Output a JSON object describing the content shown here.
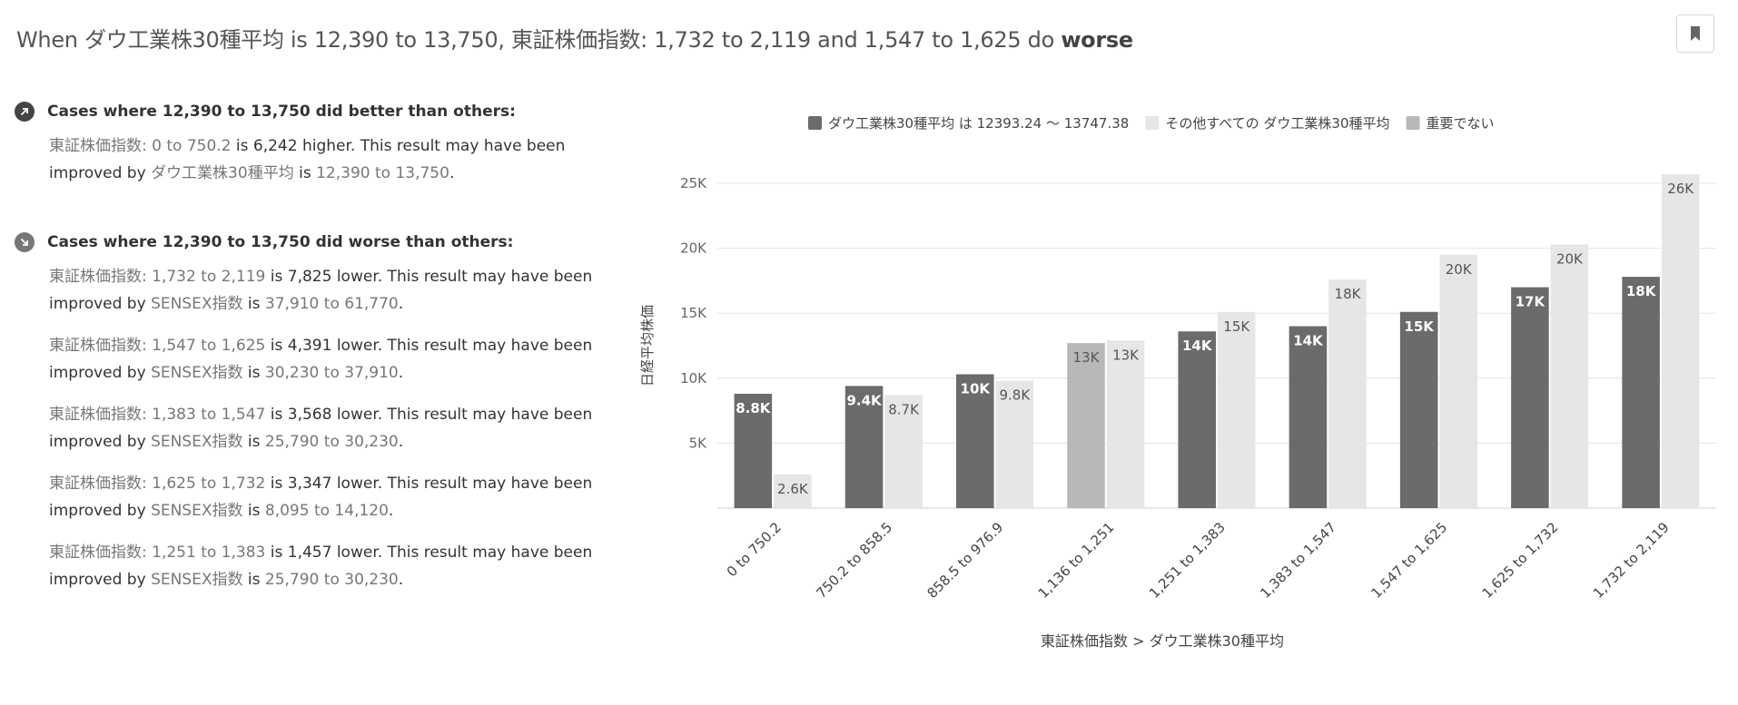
{
  "header": {
    "prefix": "When ダウ工業株30種平均 is 12,390 to 13,750, 東証株価指数: 1,732 to 2,119 and 1,547 to 1,625 do ",
    "emphasis": "worse"
  },
  "icons": {
    "bookmark": "bookmark-icon",
    "better": "arrow-up-right-icon",
    "worse": "arrow-down-right-icon"
  },
  "better": {
    "title": "Cases where 12,390 to 13,750 did better than others:",
    "items": [
      {
        "label": "東証株価指数: ",
        "range": "0 to 750.2",
        "mid": " is ",
        "amount": "6,242",
        "dir": " higher.",
        "note": " This result may have been improved by ",
        "factor": "ダウ工業株30種平均",
        "is": " is ",
        "frange": "12,390 to 13,750",
        "end": "."
      }
    ]
  },
  "worse": {
    "title": "Cases where 12,390 to 13,750 did worse than others:",
    "items": [
      {
        "label": "東証株価指数: ",
        "range": "1,732 to 2,119",
        "mid": " is ",
        "amount": "7,825",
        "dir": " lower.",
        "note": " This result may have been improved by ",
        "factor": "SENSEX指数",
        "is": " is ",
        "frange": "37,910 to 61,770",
        "end": "."
      },
      {
        "label": "東証株価指数: ",
        "range": "1,547 to 1,625",
        "mid": " is ",
        "amount": "4,391",
        "dir": " lower.",
        "note": " This result may have been improved by ",
        "factor": "SENSEX指数",
        "is": " is ",
        "frange": "30,230 to 37,910",
        "end": "."
      },
      {
        "label": "東証株価指数: ",
        "range": "1,383 to 1,547",
        "mid": " is ",
        "amount": "3,568",
        "dir": " lower.",
        "note": " This result may have been improved by ",
        "factor": "SENSEX指数",
        "is": " is ",
        "frange": "25,790 to 30,230",
        "end": "."
      },
      {
        "label": "東証株価指数: ",
        "range": "1,625 to 1,732",
        "mid": " is ",
        "amount": "3,347",
        "dir": " lower.",
        "note": " This result may have been improved by ",
        "factor": "SENSEX指数",
        "is": " is ",
        "frange": "8,095 to 14,120",
        "end": "."
      },
      {
        "label": "東証株価指数: ",
        "range": "1,251 to 1,383",
        "mid": " is ",
        "amount": "1,457",
        "dir": " lower.",
        "note": " This result may have been improved by ",
        "factor": "SENSEX指数",
        "is": " is ",
        "frange": "25,790 to 30,230",
        "end": "."
      }
    ]
  },
  "chart_data": {
    "type": "bar",
    "legend_position": "top",
    "grid": true,
    "xlabel": "東証株価指数 > ダウ工業株30種平均",
    "ylabel": "日経平均株価",
    "ylim": [
      0,
      25000
    ],
    "yticks": [
      {
        "value": 5000,
        "label": "5K"
      },
      {
        "value": 10000,
        "label": "10K"
      },
      {
        "value": 15000,
        "label": "15K"
      },
      {
        "value": 20000,
        "label": "20K"
      },
      {
        "value": 25000,
        "label": "25K"
      }
    ],
    "categories": [
      "0 to 750.2",
      "750.2 to 858.5",
      "858.5 to 976.9",
      "1,136 to 1,251",
      "1,251 to 1,383",
      "1,383 to 1,547",
      "1,547 to 1,625",
      "1,625 to 1,732",
      "1,732 to 2,119"
    ],
    "legend": [
      {
        "name": "ダウ工業株30種平均 は 12393.24 〜 13747.38",
        "color": "#6b6b6b"
      },
      {
        "name": "その他すべての ダウ工業株30種平均",
        "color": "#e6e6e6"
      },
      {
        "name": "重要でない",
        "color": "#b8b8b8"
      }
    ],
    "series": [
      {
        "name": "ダウ工業株30種平均 は 12393.24 〜 13747.38",
        "color": "#6b6b6b",
        "values": [
          8800,
          9400,
          10300,
          12700,
          13600,
          14000,
          15100,
          17000,
          17800
        ],
        "labels": [
          "8.8K",
          "9.4K",
          "10K",
          "13K",
          "14K",
          "14K",
          "15K",
          "17K",
          "18K"
        ],
        "not_significant": [
          false,
          false,
          false,
          true,
          false,
          false,
          false,
          false,
          false
        ]
      },
      {
        "name": "その他すべての ダウ工業株30種平均",
        "color": "#e6e6e6",
        "values": [
          2600,
          8700,
          9800,
          12900,
          15100,
          17600,
          19500,
          20300,
          25700
        ],
        "labels": [
          "2.6K",
          "8.7K",
          "9.8K",
          "13K",
          "15K",
          "18K",
          "20K",
          "20K",
          "26K"
        ]
      }
    ]
  }
}
